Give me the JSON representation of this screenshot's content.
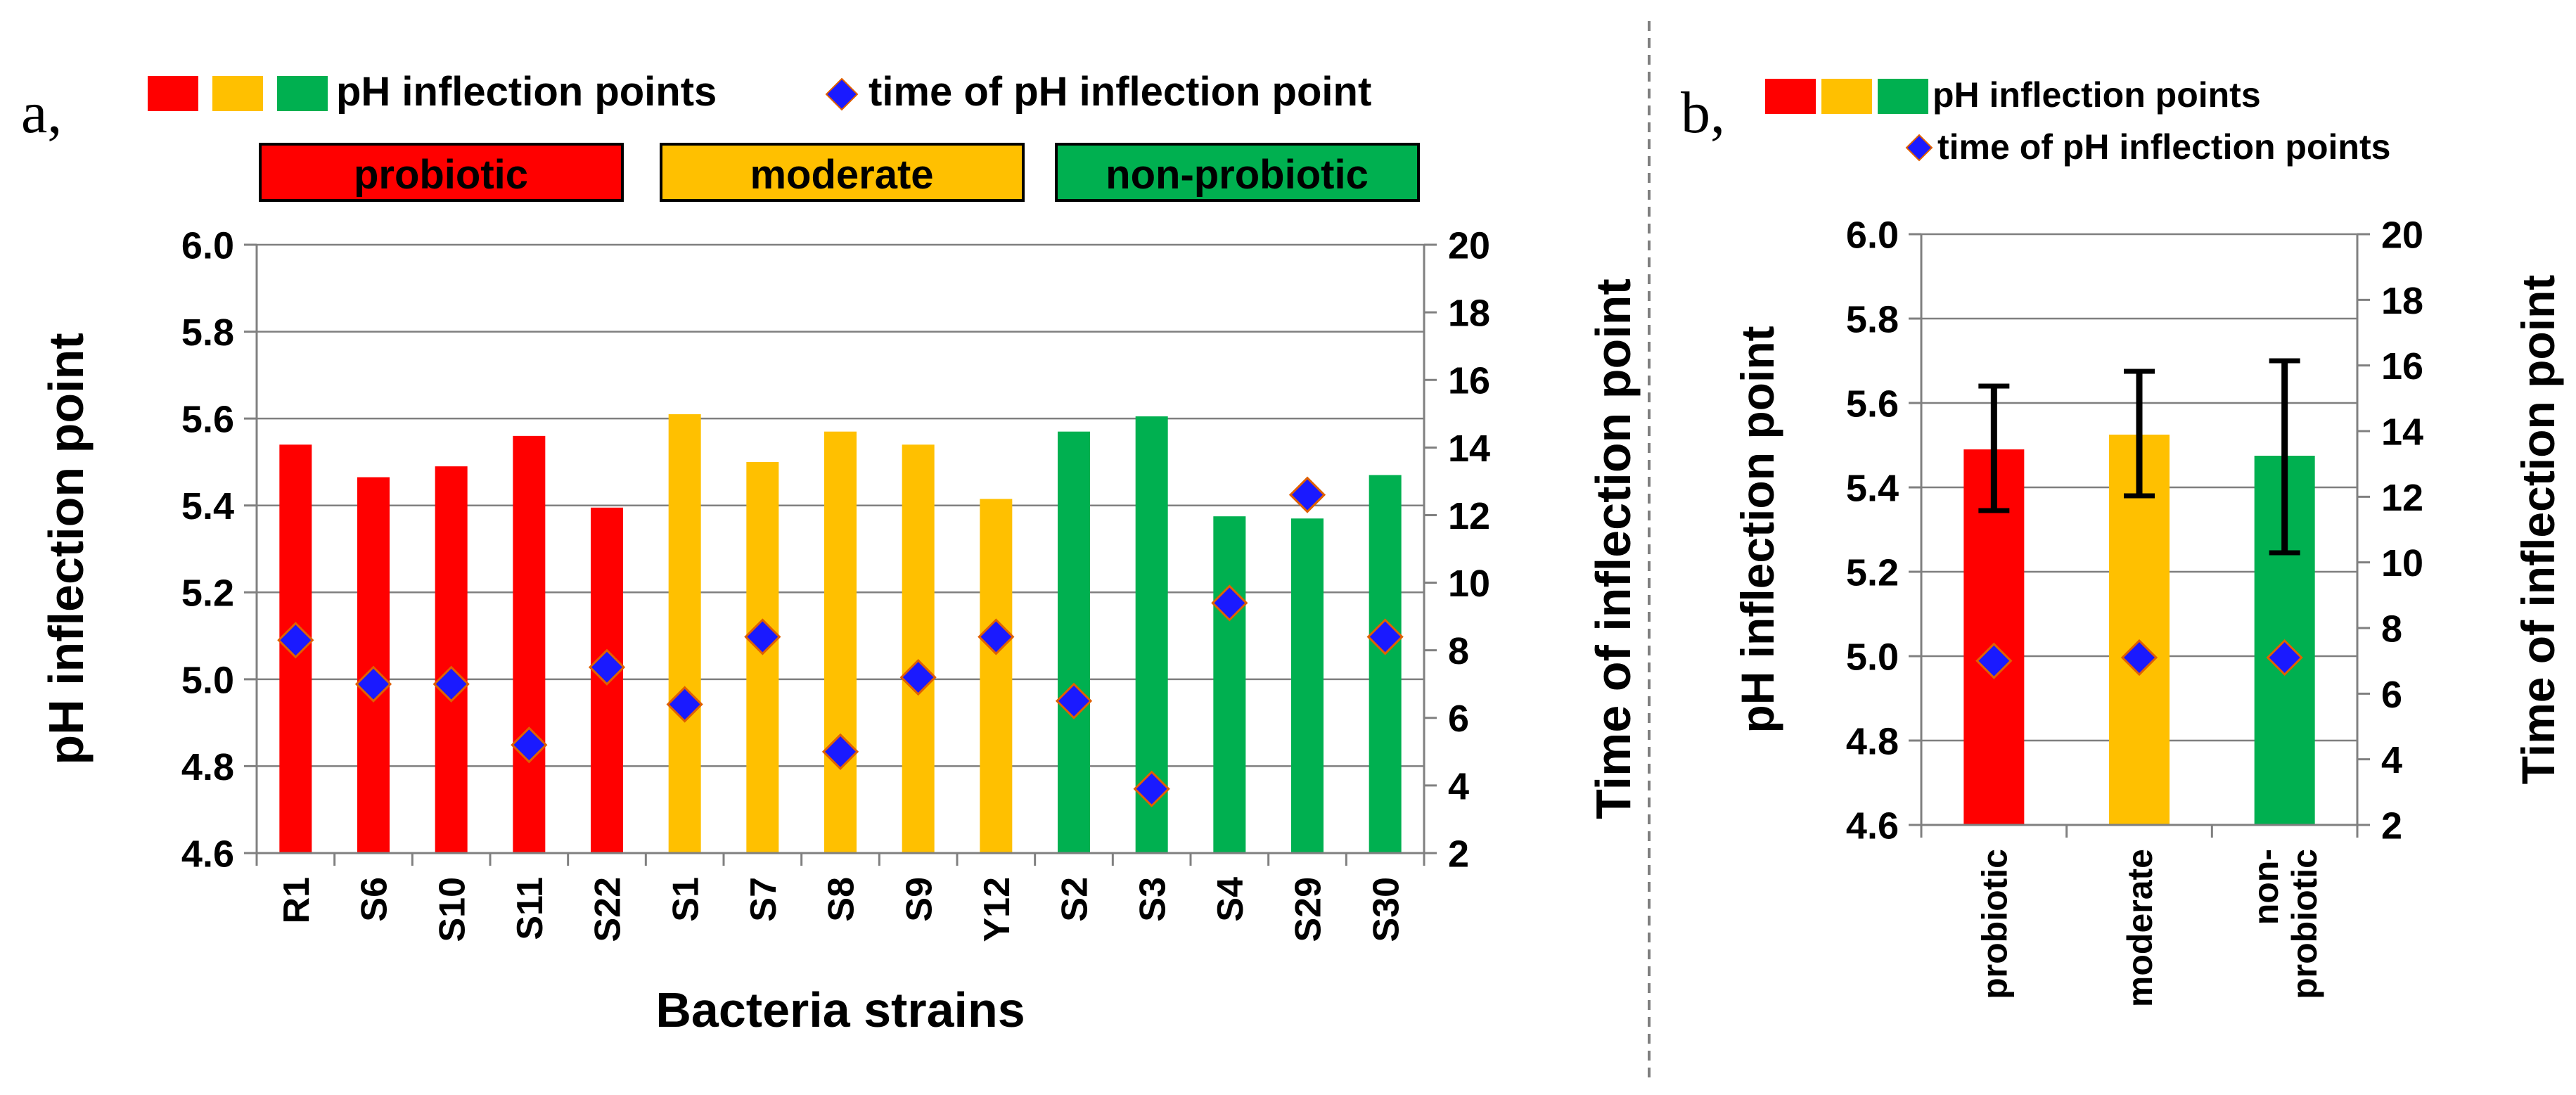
{
  "panel_a": {
    "label": "a,",
    "legend": {
      "bars_label": "pH inflection points",
      "marker_label": "time of pH inflection point"
    },
    "group_labels": [
      "probiotic",
      "moderate",
      "non-probiotic"
    ]
  },
  "panel_b": {
    "label": "b,",
    "legend": {
      "bars_label": "pH inflection points",
      "marker_label": "time of pH inflection points"
    }
  },
  "colors": {
    "probiotic": "#ff0000",
    "moderate": "#ffc000",
    "non_probiotic": "#00b050",
    "marker": "#1a1aff",
    "marker_edge": "#e06000",
    "axis": "#808080",
    "grid": "#7f7f7f",
    "divider": "#7f7f7f"
  },
  "chart_data": [
    {
      "type": "bar",
      "title": "",
      "xlabel": "Bacteria strains",
      "ylabel": "pH inflection point",
      "y2label": "Time of inflection point",
      "categories": [
        "R1",
        "S6",
        "S10",
        "S11",
        "S22",
        "S1",
        "S7",
        "S8",
        "S9",
        "Y12",
        "S2",
        "S3",
        "S4",
        "S29",
        "S30"
      ],
      "groups": [
        "probiotic",
        "probiotic",
        "probiotic",
        "probiotic",
        "probiotic",
        "moderate",
        "moderate",
        "moderate",
        "moderate",
        "moderate",
        "non_probiotic",
        "non_probiotic",
        "non_probiotic",
        "non_probiotic",
        "non_probiotic"
      ],
      "series": [
        {
          "name": "pH inflection points",
          "axis": "left",
          "values": [
            5.54,
            5.465,
            5.49,
            5.56,
            5.395,
            5.61,
            5.5,
            5.57,
            5.54,
            5.415,
            5.57,
            5.605,
            5.375,
            5.37,
            5.47
          ]
        },
        {
          "name": "time of pH inflection point",
          "axis": "right",
          "values": [
            8.3,
            7.0,
            7.0,
            5.2,
            7.5,
            6.4,
            8.4,
            5.0,
            7.2,
            8.4,
            6.5,
            3.9,
            9.4,
            12.6,
            8.4
          ]
        }
      ],
      "ylim": [
        4.6,
        6.0
      ],
      "yticks": [
        "4.6",
        "4.8",
        "5.0",
        "5.2",
        "5.4",
        "5.6",
        "5.8",
        "6.0"
      ],
      "y2lim": [
        2,
        20
      ],
      "y2ticks": [
        "2",
        "4",
        "6",
        "8",
        "10",
        "12",
        "14",
        "16",
        "18",
        "20"
      ],
      "grid": true,
      "legend_position": "top"
    },
    {
      "type": "bar",
      "title": "",
      "xlabel": "",
      "ylabel": "pH inflection point",
      "y2label": "Time of inflection point",
      "categories": [
        "probiotic",
        "moderate",
        "non-probiotic"
      ],
      "category_lines": [
        [
          "probiotic"
        ],
        [
          "moderate"
        ],
        [
          "non-",
          "probiotic"
        ]
      ],
      "groups": [
        "probiotic",
        "moderate",
        "non_probiotic"
      ],
      "series": [
        {
          "name": "pH inflection points",
          "axis": "left",
          "values": [
            5.49,
            5.525,
            5.475
          ],
          "error_low": [
            5.345,
            5.38,
            5.245
          ],
          "error_high": [
            5.64,
            5.675,
            5.7
          ]
        },
        {
          "name": "time of pH inflection points",
          "axis": "right",
          "values": [
            7.0,
            7.1,
            7.1
          ]
        }
      ],
      "ylim": [
        4.6,
        6.0
      ],
      "yticks": [
        "4.6",
        "4.8",
        "5.0",
        "5.2",
        "5.4",
        "5.6",
        "5.8",
        "6.0"
      ],
      "y2lim": [
        2,
        20
      ],
      "y2ticks": [
        "2",
        "4",
        "6",
        "8",
        "10",
        "12",
        "14",
        "16",
        "18",
        "20"
      ],
      "grid": true,
      "legend_position": "top"
    }
  ]
}
